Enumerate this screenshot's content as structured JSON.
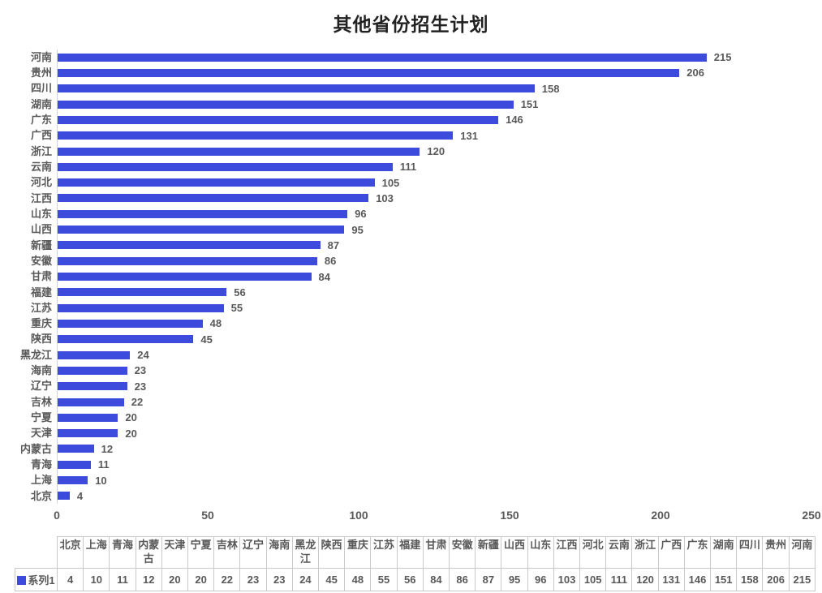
{
  "page": {
    "title": "其他省份招生计划"
  },
  "colors": {
    "bar": "#3C4BDB",
    "label_text": "#595959",
    "title_text": "#222222",
    "axis_line": "#D6D6D6",
    "table_border": "#C9C9C9"
  },
  "chart_data": {
    "type": "bar",
    "orientation": "horizontal",
    "title": "其他省份招生计划",
    "series_name": "系列1",
    "categories_top_to_bottom": [
      "河南",
      "贵州",
      "四川",
      "湖南",
      "广东",
      "广西",
      "浙江",
      "云南",
      "河北",
      "江西",
      "山东",
      "山西",
      "新疆",
      "安徽",
      "甘肃",
      "福建",
      "江苏",
      "重庆",
      "陕西",
      "黑龙江",
      "海南",
      "辽宁",
      "吉林",
      "宁夏",
      "天津",
      "内蒙古",
      "青海",
      "上海",
      "北京"
    ],
    "values": [
      215,
      206,
      158,
      151,
      146,
      131,
      120,
      111,
      105,
      103,
      96,
      95,
      87,
      86,
      84,
      56,
      55,
      48,
      45,
      24,
      23,
      23,
      22,
      20,
      20,
      12,
      11,
      10,
      4
    ],
    "xlim": [
      0,
      250
    ],
    "x_ticks": [
      0,
      50,
      100,
      150,
      200,
      250
    ],
    "grid": false,
    "data_labels": true,
    "legend_position": "table-row-header"
  },
  "data_table": {
    "legend_label": "系列1",
    "legend_marker": "blue-square",
    "columns": [
      "北京",
      "上海",
      "青海",
      "内蒙古",
      "天津",
      "宁夏",
      "吉林",
      "辽宁",
      "海南",
      "黑龙江",
      "陕西",
      "重庆",
      "江苏",
      "福建",
      "甘肃",
      "安徽",
      "新疆",
      "山西",
      "山东",
      "江西",
      "河北",
      "云南",
      "浙江",
      "广西",
      "广东",
      "湖南",
      "四川",
      "贵州",
      "河南"
    ],
    "values": [
      4,
      10,
      11,
      12,
      20,
      20,
      22,
      23,
      23,
      24,
      45,
      48,
      55,
      56,
      84,
      86,
      87,
      95,
      96,
      103,
      105,
      111,
      120,
      131,
      146,
      151,
      158,
      206,
      215
    ]
  }
}
